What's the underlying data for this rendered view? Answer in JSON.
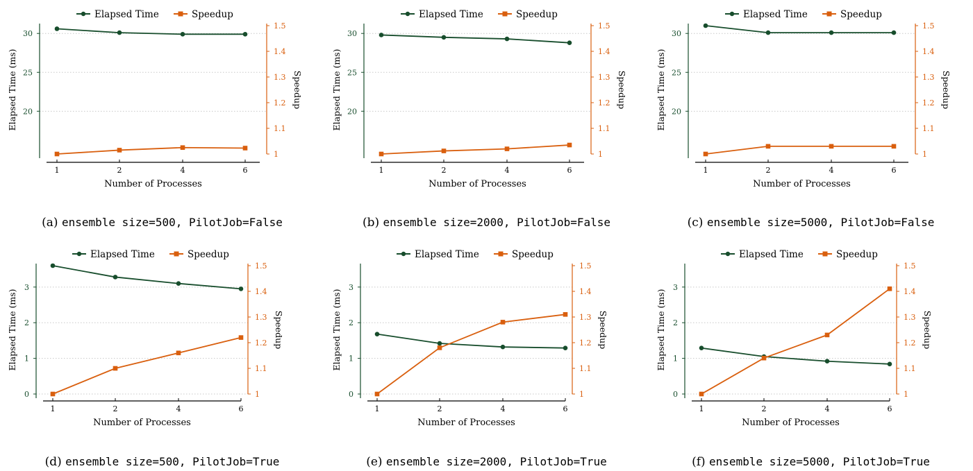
{
  "colors": {
    "elapsed": "#174d2c",
    "speedup": "#d95f0e",
    "grid": "#c8c8c8",
    "axis": "#000000"
  },
  "legend": {
    "elapsed": "Elapsed Time",
    "speedup": "Speedup"
  },
  "chart_data": [
    {
      "type": "line",
      "caption_label": "(a)",
      "caption_code": "ensemble size=500, PilotJob=False",
      "xlabel": "Number of Processes",
      "ylabel_left": "Elapsed Time (ms)",
      "ylabel_right": "Speedup",
      "x": [
        1,
        2,
        4,
        6
      ],
      "y_left_ticks": [
        20,
        25,
        30
      ],
      "y_left_range": [
        14.5,
        31
      ],
      "y_right_ticks": [
        1,
        1.1,
        1.2,
        1.3,
        1.4,
        1.5
      ],
      "y_right_range": [
        1,
        1.5
      ],
      "series": [
        {
          "name": "Elapsed Time",
          "axis": "left",
          "values": [
            30.6,
            30.1,
            29.9,
            29.9
          ]
        },
        {
          "name": "Speedup",
          "axis": "right",
          "values": [
            1.0,
            1.015,
            1.025,
            1.023
          ]
        }
      ]
    },
    {
      "type": "line",
      "caption_label": "(b)",
      "caption_code": "ensemble size=2000, PilotJob=False",
      "xlabel": "Number of Processes",
      "ylabel_left": "Elapsed Time (ms)",
      "ylabel_right": "Speedup",
      "x": [
        1,
        2,
        4,
        6
      ],
      "y_left_ticks": [
        20,
        25,
        30
      ],
      "y_left_range": [
        14.5,
        31
      ],
      "y_right_ticks": [
        1,
        1.1,
        1.2,
        1.3,
        1.4,
        1.5
      ],
      "y_right_range": [
        1,
        1.5
      ],
      "series": [
        {
          "name": "Elapsed Time",
          "axis": "left",
          "values": [
            29.8,
            29.5,
            29.3,
            28.8
          ]
        },
        {
          "name": "Speedup",
          "axis": "right",
          "values": [
            1.0,
            1.012,
            1.02,
            1.035
          ]
        }
      ]
    },
    {
      "type": "line",
      "caption_label": "(c)",
      "caption_code": "ensemble size=5000, PilotJob=False",
      "xlabel": "Number of Processes",
      "ylabel_left": "Elapsed Time (ms)",
      "ylabel_right": "Speedup",
      "x": [
        1,
        2,
        4,
        6
      ],
      "y_left_ticks": [
        20,
        25,
        30
      ],
      "y_left_range": [
        14.5,
        31
      ],
      "y_right_ticks": [
        1,
        1.1,
        1.2,
        1.3,
        1.4,
        1.5
      ],
      "y_right_range": [
        1,
        1.5
      ],
      "series": [
        {
          "name": "Elapsed Time",
          "axis": "left",
          "values": [
            31.0,
            30.1,
            30.1,
            30.1
          ]
        },
        {
          "name": "Speedup",
          "axis": "right",
          "values": [
            1.0,
            1.03,
            1.03,
            1.03
          ]
        }
      ]
    },
    {
      "type": "line",
      "caption_label": "(d)",
      "caption_code": "ensemble size=500, PilotJob=True",
      "xlabel": "Number of Processes",
      "ylabel_left": "Elapsed Time (ms)",
      "ylabel_right": "Speedup",
      "x": [
        1,
        2,
        4,
        6
      ],
      "y_left_ticks": [
        0,
        1,
        2,
        3
      ],
      "y_left_range": [
        0,
        3.6
      ],
      "y_right_ticks": [
        1,
        1.1,
        1.2,
        1.3,
        1.4,
        1.5
      ],
      "y_right_range": [
        1,
        1.5
      ],
      "series": [
        {
          "name": "Elapsed Time",
          "axis": "left",
          "values": [
            3.6,
            3.28,
            3.1,
            2.95
          ]
        },
        {
          "name": "Speedup",
          "axis": "right",
          "values": [
            1.0,
            1.1,
            1.16,
            1.22
          ]
        }
      ]
    },
    {
      "type": "line",
      "caption_label": "(e)",
      "caption_code": "ensemble size=2000, PilotJob=True",
      "xlabel": "Number of Processes",
      "ylabel_left": "Elapsed Time (ms)",
      "ylabel_right": "Speedup",
      "x": [
        1,
        2,
        4,
        6
      ],
      "y_left_ticks": [
        0,
        1,
        2,
        3
      ],
      "y_left_range": [
        0,
        3.6
      ],
      "y_right_ticks": [
        1,
        1.1,
        1.2,
        1.3,
        1.4,
        1.5
      ],
      "y_right_range": [
        1,
        1.5
      ],
      "series": [
        {
          "name": "Elapsed Time",
          "axis": "left",
          "values": [
            1.68,
            1.42,
            1.32,
            1.29
          ]
        },
        {
          "name": "Speedup",
          "axis": "right",
          "values": [
            1.0,
            1.18,
            1.28,
            1.31
          ]
        }
      ]
    },
    {
      "type": "line",
      "caption_label": "(f)",
      "caption_code": "ensemble size=5000, PilotJob=True",
      "xlabel": "Number of Processes",
      "ylabel_left": "Elapsed Time (ms)",
      "ylabel_right": "Speedup",
      "x": [
        1,
        2,
        4,
        6
      ],
      "y_left_ticks": [
        0,
        1,
        2,
        3
      ],
      "y_left_range": [
        0,
        3.6
      ],
      "y_right_ticks": [
        1,
        1.1,
        1.2,
        1.3,
        1.4,
        1.5
      ],
      "y_right_range": [
        1,
        1.5
      ],
      "series": [
        {
          "name": "Elapsed Time",
          "axis": "left",
          "values": [
            1.29,
            1.05,
            0.92,
            0.84
          ]
        },
        {
          "name": "Speedup",
          "axis": "right",
          "values": [
            1.0,
            1.14,
            1.23,
            1.41
          ]
        }
      ]
    }
  ]
}
